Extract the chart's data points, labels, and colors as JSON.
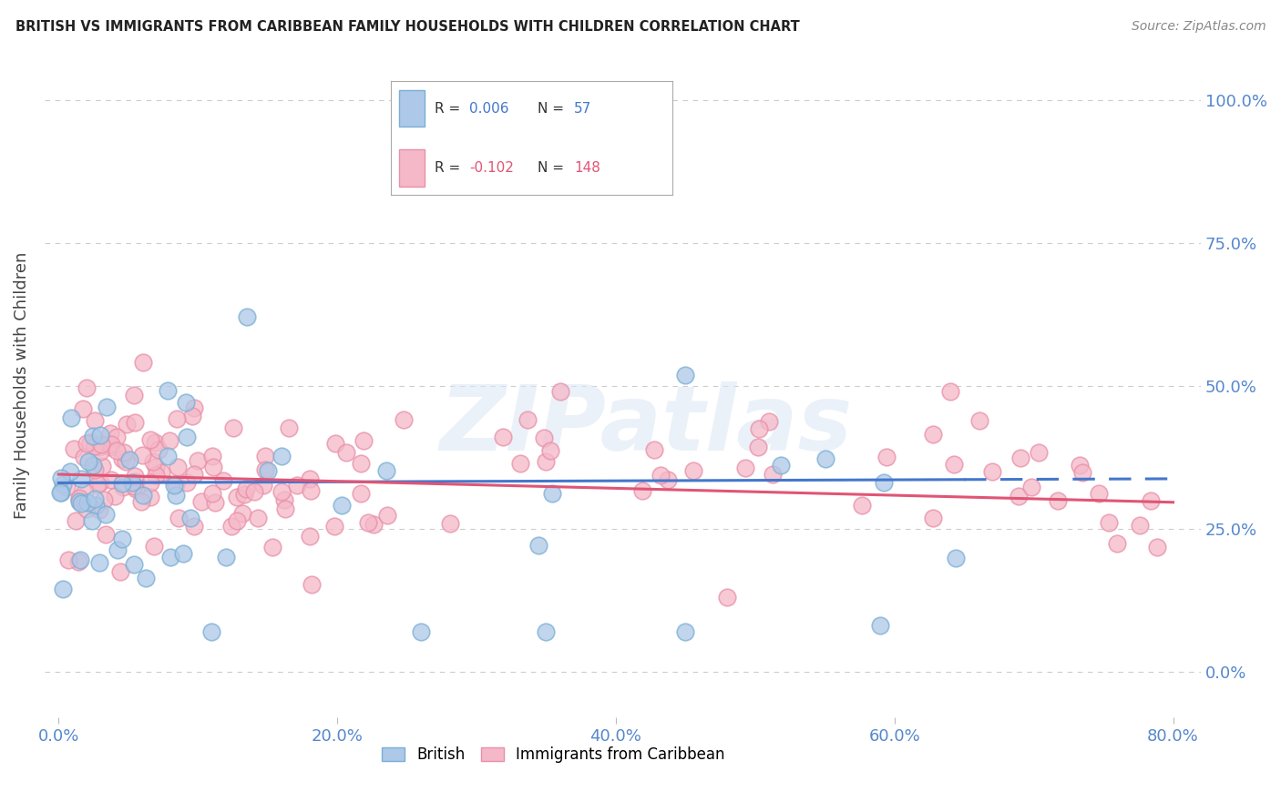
{
  "title": "BRITISH VS IMMIGRANTS FROM CARIBBEAN FAMILY HOUSEHOLDS WITH CHILDREN CORRELATION CHART",
  "source": "Source: ZipAtlas.com",
  "ylabel": "Family Households with Children",
  "xlim": [
    0.0,
    80.0
  ],
  "ylim": [
    0.0,
    100.0
  ],
  "x_tick_vals": [
    0,
    20,
    40,
    60,
    80
  ],
  "y_tick_vals": [
    0,
    25,
    50,
    75,
    100
  ],
  "british_R": 0.006,
  "british_N": 57,
  "caribbean_R": -0.102,
  "caribbean_N": 148,
  "british_fill": "#adc8e8",
  "british_edge": "#7aafd4",
  "caribbean_fill": "#f5b8c8",
  "caribbean_edge": "#e890a8",
  "british_line_color": "#4477cc",
  "caribbean_line_color": "#e05575",
  "legend_label_british": "British",
  "legend_label_caribbean": "Immigrants from Caribbean",
  "watermark": "ZIPatlas",
  "grid_color": "#cccccc",
  "axis_label_color": "#5588cc",
  "title_color": "#222222",
  "source_color": "#888888"
}
